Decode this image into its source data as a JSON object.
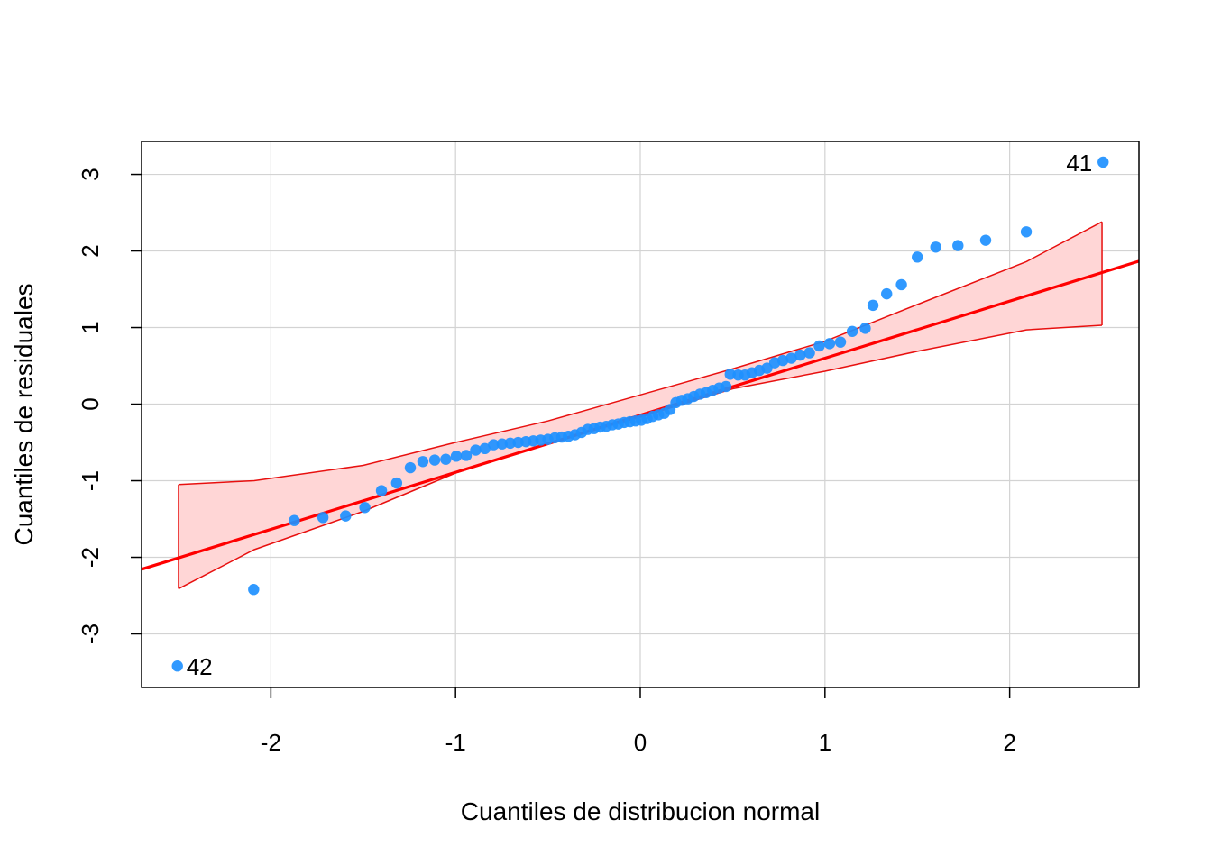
{
  "chart_data": {
    "type": "scatter",
    "xlabel": "Cuantiles de distribucion normal",
    "ylabel": "Cuantiles de residuales",
    "xlim": [
      -2.7,
      2.7
    ],
    "ylim": [
      -3.7,
      3.43
    ],
    "xticks": [
      -2,
      -1,
      0,
      1,
      2
    ],
    "yticks": [
      -3,
      -2,
      -1,
      0,
      1,
      2,
      3
    ],
    "xtick_labels": [
      "-2",
      "-1",
      "0",
      "1",
      "2"
    ],
    "ytick_labels": [
      "-3",
      "-2",
      "-1",
      "0",
      "1",
      "2",
      "3"
    ],
    "grid": true,
    "colors": {
      "points": "#1E90FF",
      "reference_line": "#FF0000",
      "envelope_fill": "#FFD6D6",
      "envelope_edge": "#E8100F",
      "grid": "#D3D3D3"
    },
    "points": [
      {
        "x": -2.506,
        "y": -3.42,
        "label": "42"
      },
      {
        "x": -2.093,
        "y": -2.42
      },
      {
        "x": -1.873,
        "y": -1.52
      },
      {
        "x": -1.718,
        "y": -1.48
      },
      {
        "x": -1.595,
        "y": -1.46
      },
      {
        "x": -1.491,
        "y": -1.35
      },
      {
        "x": -1.401,
        "y": -1.13
      },
      {
        "x": -1.319,
        "y": -1.03
      },
      {
        "x": -1.245,
        "y": -0.83
      },
      {
        "x": -1.177,
        "y": -0.75
      },
      {
        "x": -1.113,
        "y": -0.73
      },
      {
        "x": -1.053,
        "y": -0.72
      },
      {
        "x": -0.996,
        "y": -0.68
      },
      {
        "x": -0.942,
        "y": -0.67
      },
      {
        "x": -0.891,
        "y": -0.6
      },
      {
        "x": -0.841,
        "y": -0.58
      },
      {
        "x": -0.794,
        "y": -0.53
      },
      {
        "x": -0.748,
        "y": -0.52
      },
      {
        "x": -0.704,
        "y": -0.51
      },
      {
        "x": -0.661,
        "y": -0.5
      },
      {
        "x": -0.619,
        "y": -0.49
      },
      {
        "x": -0.579,
        "y": -0.48
      },
      {
        "x": -0.539,
        "y": -0.47
      },
      {
        "x": -0.5,
        "y": -0.46
      },
      {
        "x": -0.462,
        "y": -0.44
      },
      {
        "x": -0.425,
        "y": -0.43
      },
      {
        "x": -0.389,
        "y": -0.42
      },
      {
        "x": -0.353,
        "y": -0.4
      },
      {
        "x": -0.318,
        "y": -0.37
      },
      {
        "x": -0.284,
        "y": -0.33
      },
      {
        "x": -0.25,
        "y": -0.32
      },
      {
        "x": -0.217,
        "y": -0.3
      },
      {
        "x": -0.184,
        "y": -0.29
      },
      {
        "x": -0.151,
        "y": -0.27
      },
      {
        "x": -0.119,
        "y": -0.26
      },
      {
        "x": -0.087,
        "y": -0.24
      },
      {
        "x": -0.056,
        "y": -0.23
      },
      {
        "x": -0.025,
        "y": -0.22
      },
      {
        "x": 0.006,
        "y": -0.21
      },
      {
        "x": 0.037,
        "y": -0.19
      },
      {
        "x": 0.068,
        "y": -0.16
      },
      {
        "x": 0.099,
        "y": -0.14
      },
      {
        "x": 0.13,
        "y": -0.12
      },
      {
        "x": 0.161,
        "y": -0.07
      },
      {
        "x": 0.193,
        "y": 0.02
      },
      {
        "x": 0.225,
        "y": 0.05
      },
      {
        "x": 0.257,
        "y": 0.07
      },
      {
        "x": 0.29,
        "y": 0.1
      },
      {
        "x": 0.323,
        "y": 0.13
      },
      {
        "x": 0.357,
        "y": 0.15
      },
      {
        "x": 0.392,
        "y": 0.18
      },
      {
        "x": 0.427,
        "y": 0.21
      },
      {
        "x": 0.464,
        "y": 0.23
      },
      {
        "x": 0.487,
        "y": 0.39
      },
      {
        "x": 0.53,
        "y": 0.38
      },
      {
        "x": 0.567,
        "y": 0.38
      },
      {
        "x": 0.605,
        "y": 0.41
      },
      {
        "x": 0.645,
        "y": 0.44
      },
      {
        "x": 0.686,
        "y": 0.47
      },
      {
        "x": 0.728,
        "y": 0.54
      },
      {
        "x": 0.772,
        "y": 0.57
      },
      {
        "x": 0.818,
        "y": 0.6
      },
      {
        "x": 0.866,
        "y": 0.64
      },
      {
        "x": 0.916,
        "y": 0.67
      },
      {
        "x": 0.969,
        "y": 0.76
      },
      {
        "x": 1.025,
        "y": 0.79
      },
      {
        "x": 1.084,
        "y": 0.81
      },
      {
        "x": 1.148,
        "y": 0.95
      },
      {
        "x": 1.218,
        "y": 0.99
      },
      {
        "x": 1.26,
        "y": 1.29
      },
      {
        "x": 1.334,
        "y": 1.44
      },
      {
        "x": 1.414,
        "y": 1.56
      },
      {
        "x": 1.5,
        "y": 1.92
      },
      {
        "x": 1.6,
        "y": 2.05
      },
      {
        "x": 1.72,
        "y": 2.07
      },
      {
        "x": 1.87,
        "y": 2.14
      },
      {
        "x": 2.09,
        "y": 2.25
      },
      {
        "x": 2.506,
        "y": 3.16,
        "label": "41"
      }
    ],
    "reference_line": {
      "intercept": -0.145,
      "slope": 0.745
    },
    "envelope": {
      "x": [
        -2.5,
        -2.09,
        -1.5,
        -1.0,
        -0.5,
        0.0,
        0.5,
        1.0,
        1.5,
        2.09,
        2.5
      ],
      "upper": [
        -1.05,
        -1.0,
        -0.8,
        -0.5,
        -0.22,
        0.12,
        0.46,
        0.82,
        1.3,
        1.86,
        2.38
      ],
      "lower": [
        -2.41,
        -1.9,
        -1.4,
        -0.9,
        -0.51,
        -0.17,
        0.2,
        0.43,
        0.69,
        0.97,
        1.03
      ]
    }
  }
}
